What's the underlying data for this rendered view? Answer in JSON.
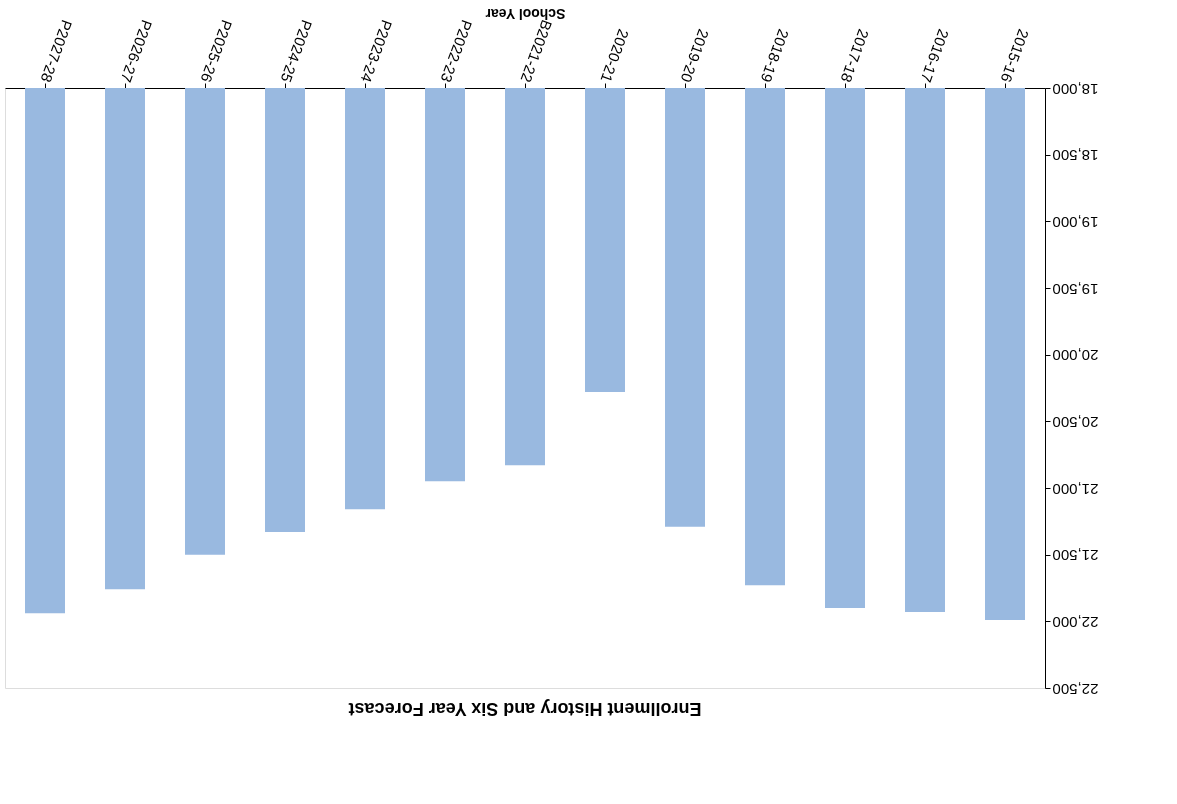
{
  "chart_data": {
    "type": "bar",
    "title": "Enrollment History and Six Year Forecast",
    "xlabel": "School Year",
    "categories": [
      "P2027-28",
      "P2026-27",
      "P2025-26",
      "P2024-25",
      "P2023-24",
      "P2022-23",
      "B2021-22",
      "2020-21",
      "2019-20",
      "2018-19",
      "2017-18",
      "2016-17",
      "2015-16"
    ],
    "values": [
      21940,
      21760,
      21500,
      21330,
      21160,
      20950,
      20830,
      20280,
      21290,
      21730,
      21900,
      21930,
      21990
    ],
    "color": "#99b9e0",
    "ylim": [
      22500,
      18000
    ],
    "yticks": [
      {
        "value": 18000,
        "label": "18,000"
      },
      {
        "value": 18500,
        "label": "18,500"
      },
      {
        "value": 19000,
        "label": "19,000"
      },
      {
        "value": 19500,
        "label": "19,500"
      },
      {
        "value": 20000,
        "label": "20,000"
      },
      {
        "value": 20500,
        "label": "20,500"
      },
      {
        "value": 21000,
        "label": "21,000"
      },
      {
        "value": 21500,
        "label": "21,500"
      },
      {
        "value": 22000,
        "label": "22,000"
      },
      {
        "value": 22500,
        "label": "22,500"
      }
    ],
    "grid": false
  }
}
